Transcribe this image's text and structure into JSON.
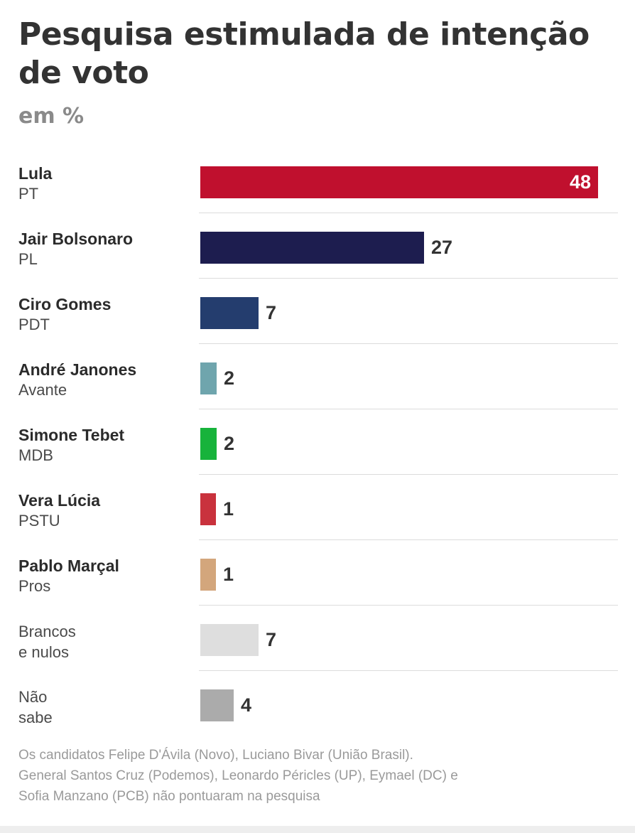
{
  "header": {
    "title": "Pesquisa estimulada de intenção de voto",
    "subtitle": "em %"
  },
  "chart_data": {
    "type": "bar",
    "orientation": "horizontal",
    "title": "Pesquisa estimulada de intenção de voto",
    "subtitle": "em %",
    "xlim": [
      0,
      48
    ],
    "grid": false,
    "categories": [
      "Lula",
      "Jair Bolsonaro",
      "Ciro Gomes",
      "André Janones",
      "Simone Tebet",
      "Vera Lúcia",
      "Pablo Marçal",
      "Brancos e nulos",
      "Não sabe"
    ],
    "rows": [
      {
        "name": "Lula",
        "party": "PT",
        "value": 48,
        "color": "#c0102e",
        "style": "bold",
        "label": "48",
        "label_inside": true
      },
      {
        "name": "Jair Bolsonaro",
        "party": "PL",
        "value": 27,
        "color": "#1d1d4f",
        "style": "bold",
        "label": "27"
      },
      {
        "name": "Ciro Gomes",
        "party": "PDT",
        "value": 7,
        "color": "#243d6e",
        "style": "bold",
        "label": "7"
      },
      {
        "name": "André Janones",
        "party": "Avante",
        "value": 2,
        "color": "#6fa5ad",
        "style": "bold",
        "label": "2"
      },
      {
        "name": "Simone Tebet",
        "party": "MDB",
        "value": 2,
        "color": "#17b33b",
        "style": "bold",
        "label": "2"
      },
      {
        "name": "Vera Lúcia",
        "party": "PSTU",
        "value": 1,
        "color": "#c9323d",
        "style": "bold",
        "label": "1"
      },
      {
        "name": "Pablo Marçal",
        "party": "Pros",
        "value": 1,
        "color": "#d3a67c",
        "style": "bold",
        "label": "1"
      },
      {
        "name": "Brancos",
        "party": "e nulos",
        "value": 7,
        "color": "#dedede",
        "style": "light",
        "label": "7"
      },
      {
        "name": "Não",
        "party": "sabe",
        "value": 4,
        "color": "#ababab",
        "style": "light",
        "label": "4"
      }
    ]
  },
  "footnote": {
    "lines": [
      "Os candidatos Felipe D'Ávila (Novo), Luciano Bivar (União Brasil).",
      "General Santos Cruz (Podemos), Leonardo Péricles (UP), Eymael (DC) e",
      "Sofia Manzano (PCB) não pontuaram na pesquisa"
    ]
  }
}
